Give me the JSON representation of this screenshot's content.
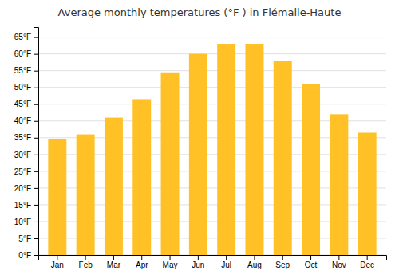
{
  "chart_data": {
    "type": "bar",
    "title": "Average monthly temperatures (°F ) in Flémalle-Haute",
    "categories": [
      "Jan",
      "Feb",
      "Mar",
      "Apr",
      "May",
      "Jun",
      "Jul",
      "Aug",
      "Sep",
      "Oct",
      "Nov",
      "Dec"
    ],
    "values": [
      34.5,
      36.0,
      41.0,
      46.5,
      54.5,
      60.0,
      63.0,
      63.0,
      58.0,
      51.0,
      42.0,
      36.5
    ],
    "color": "#FFC125",
    "ylim": [
      0,
      68
    ],
    "yticks": [
      {
        "value": 0,
        "label": "0°F"
      },
      {
        "value": 5,
        "label": "5°F"
      },
      {
        "value": 10,
        "label": "10°F"
      },
      {
        "value": 15,
        "label": "15°F"
      },
      {
        "value": 20,
        "label": "20°F"
      },
      {
        "value": 25,
        "label": "25°F"
      },
      {
        "value": 30,
        "label": "30°F"
      },
      {
        "value": 35,
        "label": "35°F"
      },
      {
        "value": 40,
        "label": "40°F"
      },
      {
        "value": 45,
        "label": "45°F"
      },
      {
        "value": 50,
        "label": "50°F"
      },
      {
        "value": 55,
        "label": "55°F"
      },
      {
        "value": 60,
        "label": "60°F"
      },
      {
        "value": 65,
        "label": "65°F"
      }
    ],
    "grid": true
  }
}
